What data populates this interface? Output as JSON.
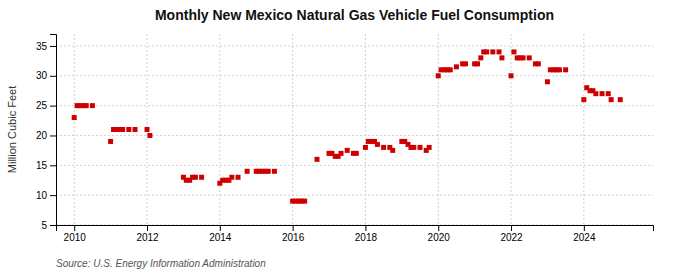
{
  "chart_data": {
    "type": "scatter",
    "title": "Monthly New Mexico Natural Gas Vehicle Fuel Consumption",
    "ylabel": "Million Cubic Feet",
    "source": "Source: U.S. Energy Information Administration",
    "color": "#cc0000",
    "marker": "square",
    "grid": true,
    "xlim": [
      2009.5,
      2025.9
    ],
    "ylim": [
      5,
      37
    ],
    "xticks": [
      2010,
      2012,
      2014,
      2016,
      2018,
      2020,
      2022,
      2024
    ],
    "yticks": [
      5,
      10,
      15,
      20,
      25,
      30,
      35
    ],
    "x": [
      2010.0,
      2010.08,
      2010.17,
      2010.25,
      2010.33,
      2010.5,
      2011.0,
      2011.08,
      2011.17,
      2011.25,
      2011.33,
      2011.5,
      2011.67,
      2012.0,
      2012.08,
      2013.0,
      2013.08,
      2013.17,
      2013.25,
      2013.33,
      2013.5,
      2014.0,
      2014.08,
      2014.17,
      2014.25,
      2014.33,
      2014.5,
      2014.75,
      2015.0,
      2015.08,
      2015.17,
      2015.25,
      2015.33,
      2015.5,
      2016.0,
      2016.08,
      2016.17,
      2016.25,
      2016.33,
      2016.67,
      2017.0,
      2017.08,
      2017.17,
      2017.25,
      2017.33,
      2017.5,
      2017.67,
      2017.75,
      2018.0,
      2018.08,
      2018.17,
      2018.25,
      2018.33,
      2018.5,
      2018.67,
      2018.75,
      2019.0,
      2019.08,
      2019.17,
      2019.25,
      2019.33,
      2019.5,
      2019.67,
      2019.75,
      2020.0,
      2020.08,
      2020.17,
      2020.25,
      2020.33,
      2020.5,
      2020.67,
      2020.75,
      2021.0,
      2021.08,
      2021.17,
      2021.25,
      2021.33,
      2021.5,
      2021.67,
      2021.75,
      2022.0,
      2022.08,
      2022.17,
      2022.25,
      2022.33,
      2022.5,
      2022.67,
      2022.75,
      2023.0,
      2023.08,
      2023.17,
      2023.25,
      2023.33,
      2023.5,
      2024.0,
      2024.08,
      2024.17,
      2024.25,
      2024.33,
      2024.5,
      2024.67,
      2024.75,
      2025.0
    ],
    "values": [
      23,
      25,
      25,
      25,
      25,
      25,
      19,
      21,
      21,
      21,
      21,
      21,
      21,
      21,
      20,
      13,
      12.5,
      12.5,
      13,
      13,
      13,
      12,
      12.5,
      12.5,
      12.5,
      13,
      13,
      14,
      14,
      14,
      14,
      14,
      14,
      14,
      9,
      9,
      9,
      9,
      9,
      16,
      17,
      17,
      16.5,
      16.5,
      17,
      17.5,
      17,
      17,
      18,
      19,
      19,
      19,
      18.5,
      18,
      18,
      17.5,
      19,
      19,
      18.5,
      18,
      18,
      18,
      17.5,
      18,
      30,
      31,
      31,
      31,
      31,
      31.5,
      32,
      32,
      32,
      32,
      33,
      34,
      34,
      34,
      34,
      33,
      30,
      34,
      33,
      33,
      33,
      33,
      32,
      32,
      29,
      31,
      31,
      31,
      31,
      31,
      26,
      28,
      27.5,
      27.5,
      27,
      27,
      27,
      26,
      26
    ]
  }
}
